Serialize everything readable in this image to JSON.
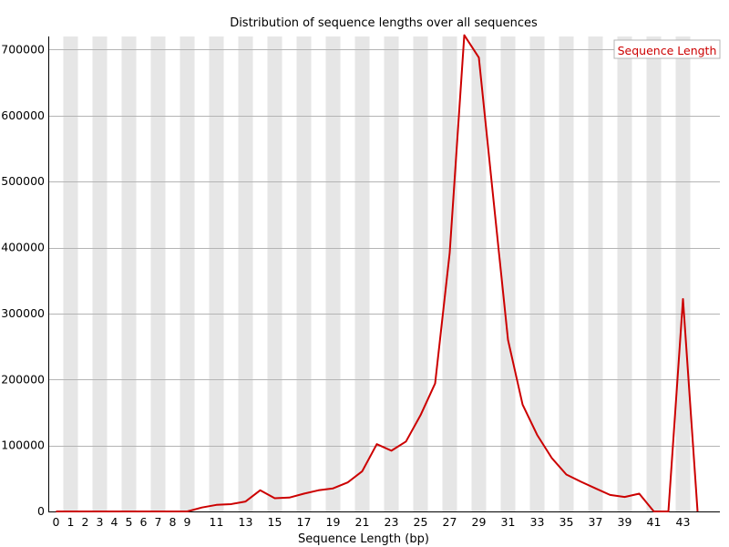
{
  "chart_data": {
    "type": "line",
    "title": "Distribution of sequence lengths over all sequences",
    "xlabel": "Sequence Length (bp)",
    "ylabel": "",
    "xlim": [
      0,
      44
    ],
    "ylim": [
      0,
      720000
    ],
    "y_ticks": [
      0,
      100000,
      200000,
      300000,
      400000,
      500000,
      600000,
      700000
    ],
    "x_tick_labels": [
      "0",
      "1",
      "2",
      "3",
      "4",
      "5",
      "6",
      "7",
      "8",
      "9",
      "11",
      "13",
      "15",
      "17",
      "19",
      "21",
      "23",
      "25",
      "27",
      "29",
      "31",
      "33",
      "35",
      "37",
      "39",
      "41",
      "43"
    ],
    "grid": true,
    "alternating_column_shading": true,
    "legend_position": "top-right",
    "colors": {
      "line": "#cc0000",
      "band": "#e6e6e6",
      "grid": "#b4b4b4"
    },
    "series": [
      {
        "name": "Sequence Length",
        "x": [
          0,
          1,
          2,
          3,
          4,
          5,
          6,
          7,
          8,
          9,
          10,
          11,
          12,
          13,
          14,
          15,
          16,
          17,
          18,
          19,
          20,
          21,
          22,
          23,
          24,
          25,
          26,
          27,
          28,
          29,
          30,
          31,
          32,
          33,
          34,
          35,
          36,
          37,
          38,
          39,
          40,
          41,
          42,
          43,
          44
        ],
        "values": [
          0,
          0,
          0,
          0,
          0,
          0,
          0,
          0,
          0,
          0,
          6000,
          10000,
          11000,
          15000,
          32000,
          20000,
          21000,
          27000,
          32000,
          35000,
          44000,
          61000,
          102000,
          92000,
          106000,
          146000,
          194000,
          392000,
          722000,
          688000,
          473000,
          260000,
          162000,
          116000,
          81000,
          56000,
          45000,
          35000,
          25000,
          22000,
          27000,
          0,
          0,
          322000,
          0
        ]
      }
    ]
  }
}
